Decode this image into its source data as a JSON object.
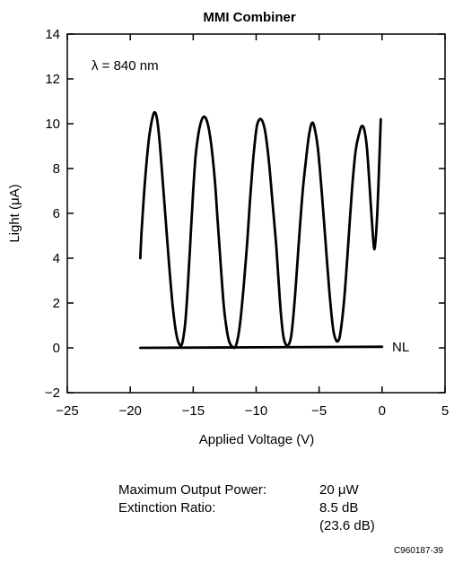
{
  "chart_data": {
    "type": "line",
    "title": "MMI Combiner",
    "xlabel": "Applied Voltage (V)",
    "ylabel": "Light (μA)",
    "xlim": [
      -25,
      5
    ],
    "ylim": [
      -2,
      14
    ],
    "xticks": [
      -25,
      -20,
      -15,
      -10,
      -5,
      0,
      5
    ],
    "xtick_labels": [
      "−25",
      "−20",
      "−15",
      "−10",
      "−5",
      "0",
      "5"
    ],
    "yticks": [
      -2,
      0,
      2,
      4,
      6,
      8,
      10,
      12,
      14
    ],
    "ytick_labels": [
      "−2",
      "0",
      "2",
      "4",
      "6",
      "8",
      "10",
      "12",
      "14"
    ],
    "grid": false,
    "annotations": [
      {
        "text": "λ = 840 nm"
      },
      {
        "text": "NL"
      }
    ],
    "series": [
      {
        "x": [
          -19.2,
          -19.1,
          -18.9,
          -18.7,
          -18.5,
          -18.3,
          -18.1,
          -17.9,
          -17.7,
          -17.5,
          -17.2,
          -16.9,
          -16.6,
          -16.3,
          -16.0,
          -15.8,
          -15.6,
          -15.4,
          -15.2,
          -15.0,
          -14.8,
          -14.5,
          -14.2,
          -13.9,
          -13.6,
          -13.3,
          -13.1,
          -12.9,
          -12.7,
          -12.5,
          -12.2,
          -11.9,
          -11.6,
          -11.3,
          -11.0,
          -10.7,
          -10.5,
          -10.3,
          -10.1,
          -9.9,
          -9.6,
          -9.3,
          -9.0,
          -8.7,
          -8.4,
          -8.2,
          -8.0,
          -7.8,
          -7.5,
          -7.2,
          -6.9,
          -6.6,
          -6.3,
          -6.0,
          -5.8,
          -5.6,
          -5.4,
          -5.1,
          -4.8,
          -4.5,
          -4.2,
          -3.9,
          -3.7,
          -3.5,
          -3.3,
          -3.0,
          -2.7,
          -2.4,
          -2.1,
          -1.8,
          -1.6,
          -1.4,
          -1.2,
          -1.0,
          -0.8,
          -0.6,
          -0.4,
          -0.2,
          -0.1
        ],
        "values": [
          4.0,
          5.2,
          6.9,
          8.3,
          9.4,
          10.1,
          10.5,
          10.3,
          9.4,
          8.0,
          5.8,
          3.6,
          1.7,
          0.5,
          0.1,
          0.4,
          1.3,
          3.0,
          5.0,
          7.0,
          8.6,
          9.8,
          10.3,
          10.1,
          9.2,
          7.6,
          6.0,
          4.4,
          2.8,
          1.5,
          0.4,
          0.05,
          0.1,
          1.0,
          2.7,
          4.8,
          6.5,
          8.0,
          9.2,
          10.0,
          10.2,
          9.7,
          8.4,
          6.5,
          4.5,
          2.8,
          1.3,
          0.4,
          0.1,
          0.6,
          2.4,
          4.8,
          7.0,
          8.6,
          9.5,
          10.0,
          9.9,
          8.9,
          7.0,
          4.8,
          2.6,
          0.9,
          0.4,
          0.3,
          0.7,
          2.2,
          4.5,
          7.0,
          8.8,
          9.6,
          9.9,
          9.7,
          8.9,
          7.3,
          5.6,
          4.4,
          5.8,
          8.6,
          10.2
        ]
      },
      {
        "x": [
          -19.2,
          0
        ],
        "values": [
          0,
          0.05
        ]
      }
    ]
  },
  "info": {
    "max_power_label": "Maximum Output Power:",
    "max_power_value": "20 μW",
    "extinction_label": "Extinction Ratio:",
    "extinction_value": "8.5 dB",
    "extinction_value_db": "(23.6 dB)"
  },
  "figure_id": "C960187-39"
}
